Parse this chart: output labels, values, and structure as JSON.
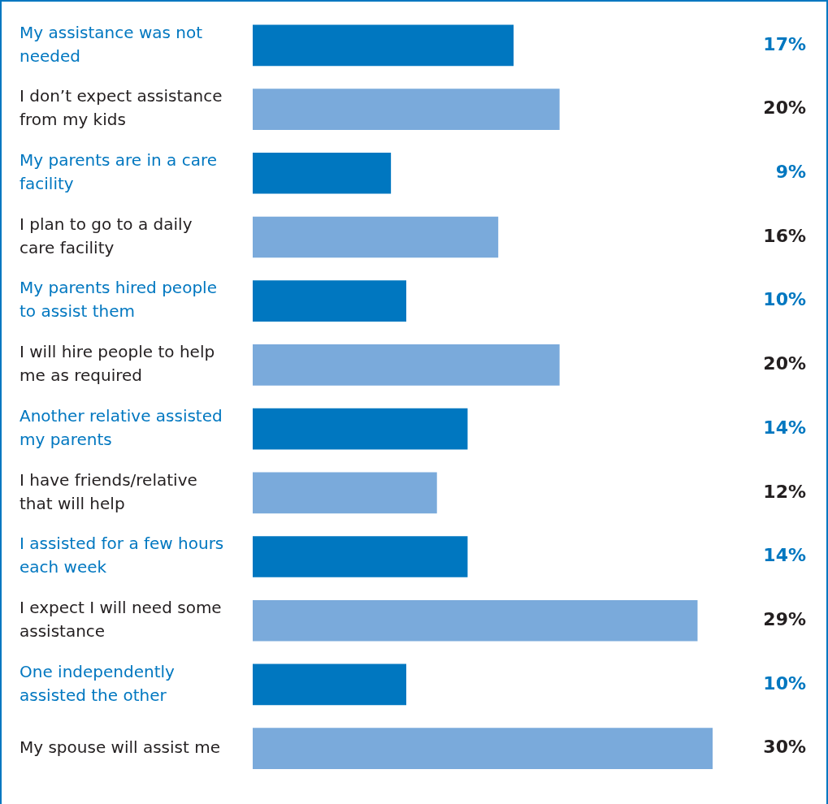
{
  "chart_data": {
    "type": "bar",
    "orientation": "horizontal",
    "categories": [
      "My assistance was not needed",
      "I don’t expect assistance from my kids",
      "My parents are in a care facility",
      "I plan to go to a daily care facility",
      "My parents hired people to assist them",
      "I will hire people to help me as required",
      "Another relative assisted my parents",
      "I have friends/relative that will help",
      "I assisted for a few hours each week",
      "I expect I will need some assistance",
      "One independently assisted the other",
      "My spouse will assist me"
    ],
    "values": [
      17,
      20,
      9,
      16,
      10,
      20,
      14,
      12,
      14,
      29,
      10,
      30
    ],
    "colors": [
      "#0077c0",
      "#7aaadb",
      "#0077c0",
      "#7aaadb",
      "#0077c0",
      "#7aaadb",
      "#0077c0",
      "#7aaadb",
      "#0077c0",
      "#7aaadb",
      "#0077c0",
      "#7aaadb"
    ],
    "value_labels": [
      "17%",
      "20%",
      "9%",
      "16%",
      "10%",
      "20%",
      "14%",
      "12%",
      "14%",
      "29%",
      "10%",
      "30%"
    ],
    "grid": false,
    "legend": false
  }
}
